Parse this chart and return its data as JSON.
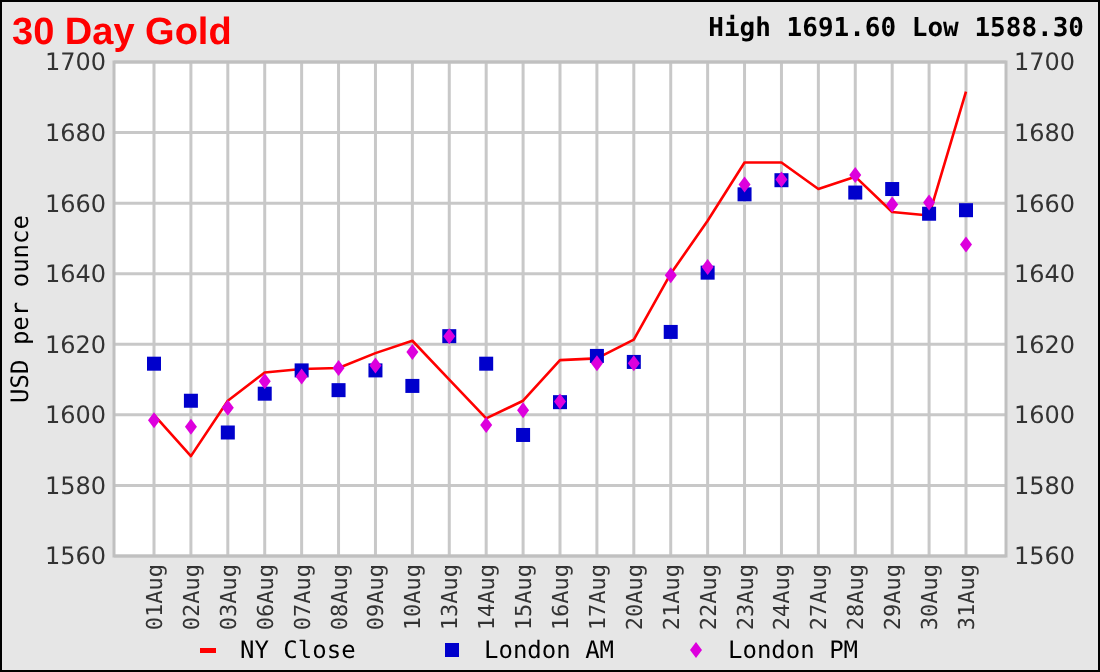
{
  "chart_data": {
    "type": "line",
    "title": "30 Day Gold",
    "subtitle": "High 1691.60 Low 1588.30",
    "ylabel": "USD per ounce",
    "categories": [
      "01Aug",
      "02Aug",
      "03Aug",
      "06Aug",
      "07Aug",
      "08Aug",
      "09Aug",
      "10Aug",
      "13Aug",
      "14Aug",
      "15Aug",
      "16Aug",
      "17Aug",
      "20Aug",
      "21Aug",
      "22Aug",
      "23Aug",
      "24Aug",
      "27Aug",
      "28Aug",
      "29Aug",
      "30Aug",
      "31Aug"
    ],
    "series": [
      {
        "name": "NY Close",
        "color": "#ff0000",
        "marker": "none",
        "line_style": "solid",
        "values": [
          1600,
          1588.3,
          1604,
          1612,
          1613,
          1613.3,
          1617.5,
          1621,
          1610,
          1599,
          1604,
          1615.5,
          1616,
          1621.3,
          1640,
          1655,
          1671.5,
          1671.5,
          1664,
          1667.5,
          1657.5,
          1656.5,
          1691.6
        ]
      },
      {
        "name": "London AM",
        "type": "scatter",
        "color": "#0000cc",
        "marker": "square",
        "values": [
          1614.5,
          1604,
          1595,
          1606,
          1612.6,
          1607,
          1612.6,
          1608.2,
          1622.3,
          1614.5,
          1594.3,
          1603.6,
          1616.7,
          1615,
          1623.5,
          1640.3,
          1662.5,
          1666.5,
          null,
          1663,
          1664,
          1657,
          1658
        ]
      },
      {
        "name": "London PM",
        "type": "scatter",
        "color": "#dd00dd",
        "marker": "diamond",
        "values": [
          1598.5,
          1596.6,
          1602,
          1609.5,
          1610.9,
          1613.3,
          1614,
          1617.8,
          1622.3,
          1597.1,
          1601.3,
          1603.8,
          1614.6,
          1614.6,
          1639.6,
          1641.9,
          1665.3,
          1666.7,
          null,
          1668,
          1659.6,
          1660.2,
          1648.3
        ]
      }
    ],
    "ylim": [
      1560,
      1700
    ],
    "yticks": [
      1560,
      1580,
      1600,
      1620,
      1640,
      1660,
      1680,
      1700
    ],
    "y2lim": [
      1560,
      1700
    ],
    "y2ticks": [
      1560,
      1580,
      1600,
      1620,
      1640,
      1660,
      1680,
      1700
    ],
    "grid": true,
    "legend": "bottom"
  }
}
